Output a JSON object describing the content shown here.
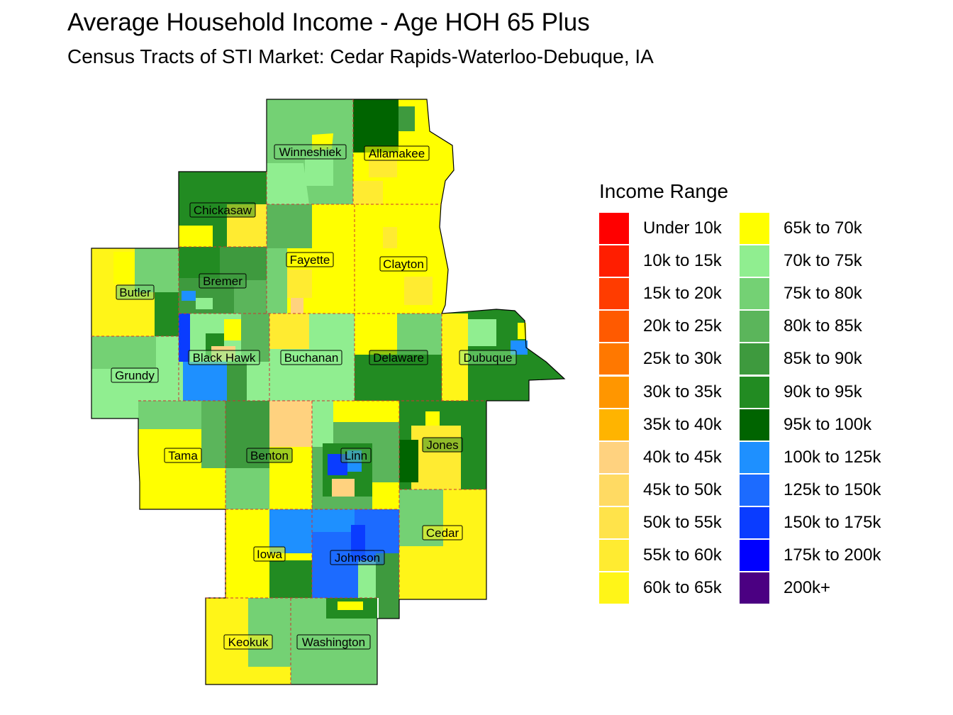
{
  "title": "Average Household Income - Age HOH 65 Plus",
  "subtitle": "Census Tracts of STI Market: Cedar Rapids-Waterloo-Debuque, IA",
  "legend": {
    "title": "Income Range",
    "items": [
      {
        "label": "Under 10k",
        "color": "#FF0000"
      },
      {
        "label": "10k to 15k",
        "color": "#FF1E00"
      },
      {
        "label": "15k to 20k",
        "color": "#FF3C00"
      },
      {
        "label": "20k to 25k",
        "color": "#FF5A00"
      },
      {
        "label": "25k to 30k",
        "color": "#FF7800"
      },
      {
        "label": "30k to 35k",
        "color": "#FF9600"
      },
      {
        "label": "35k to 40k",
        "color": "#FFB400"
      },
      {
        "label": "40k to 45k",
        "color": "#FFD27F"
      },
      {
        "label": "45k to 50k",
        "color": "#FFDA63"
      },
      {
        "label": "50k to 55k",
        "color": "#FFE34A"
      },
      {
        "label": "55k to 60k",
        "color": "#FFEB31"
      },
      {
        "label": "60k to 65k",
        "color": "#FFF518"
      },
      {
        "label": "65k to 70k",
        "color": "#FFFF00"
      },
      {
        "label": "70k to 75k",
        "color": "#90EE90"
      },
      {
        "label": "75k to 80k",
        "color": "#74D174"
      },
      {
        "label": "80k to 85k",
        "color": "#5BB55B"
      },
      {
        "label": "85k to 90k",
        "color": "#3E9A3E"
      },
      {
        "label": "90k to 95k",
        "color": "#228B22"
      },
      {
        "label": "95k to 100k",
        "color": "#006400"
      },
      {
        "label": "100k to 125k",
        "color": "#1E90FF"
      },
      {
        "label": "125k to 150k",
        "color": "#1C6BFF"
      },
      {
        "label": "150k to 175k",
        "color": "#0A3CFF"
      },
      {
        "label": "175k to 200k",
        "color": "#0000FF"
      },
      {
        "label": "200k+",
        "color": "#4B0082"
      }
    ]
  },
  "counties": [
    {
      "name": "Winneshiek"
    },
    {
      "name": "Allamakee"
    },
    {
      "name": "Chickasaw"
    },
    {
      "name": "Fayette"
    },
    {
      "name": "Clayton"
    },
    {
      "name": "Butler"
    },
    {
      "name": "Bremer"
    },
    {
      "name": "Black Hawk"
    },
    {
      "name": "Buchanan"
    },
    {
      "name": "Delaware"
    },
    {
      "name": "Dubuque"
    },
    {
      "name": "Grundy"
    },
    {
      "name": "Tama"
    },
    {
      "name": "Benton"
    },
    {
      "name": "Linn"
    },
    {
      "name": "Jones"
    },
    {
      "name": "Iowa"
    },
    {
      "name": "Johnson"
    },
    {
      "name": "Cedar"
    },
    {
      "name": "Keokuk"
    },
    {
      "name": "Washington"
    }
  ]
}
